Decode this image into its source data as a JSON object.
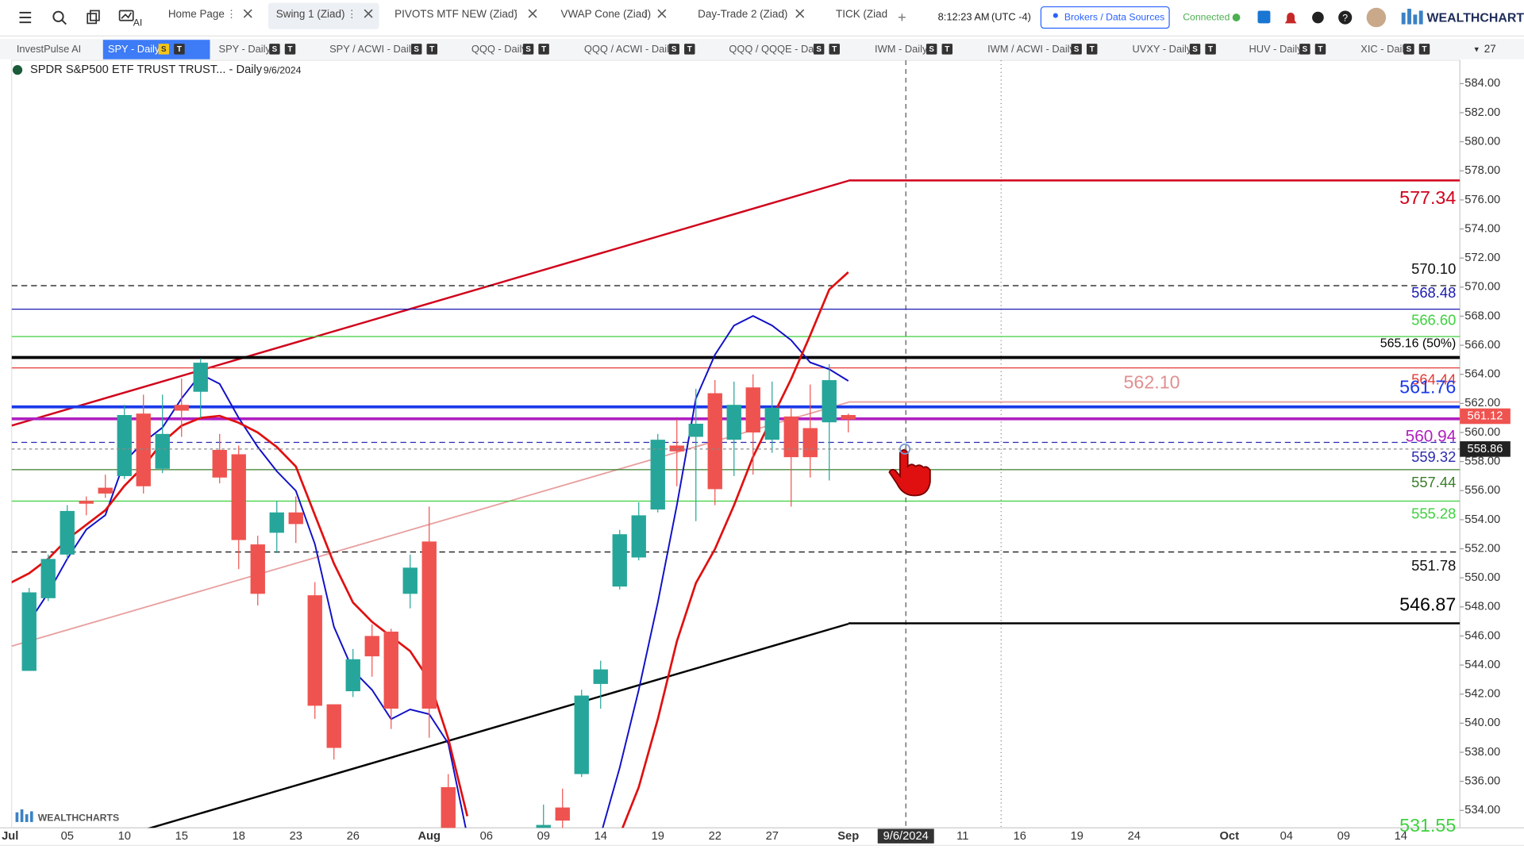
{
  "toolbar": {
    "tabs": [
      "Home Page",
      "Swing 1 (Ziad)",
      "PIVOTS MTF NEW (Ziad)",
      "VWAP Cone (Ziad)",
      "Day-Trade 2 (Ziad)",
      "TICK (Ziad"
    ],
    "ai": "AI",
    "time": "8:12:23 AM",
    "timezone": "(UTC -4)",
    "brokers": "Brokers / Data Sources",
    "status": "Connected",
    "brand": "WEALTHCHARTS"
  },
  "chart_tabs": {
    "tabs": [
      "InvestPulse AI",
      "SPY - Daily",
      "SPY - Daily",
      "SPY / ACWI - Daily",
      "QQQ - Daily",
      "QQQ / ACWI - Daily",
      "QQQ / QQQE - Daily",
      "IWM - Daily",
      "IWM / ACWI - Daily",
      "UVXY - Daily",
      "HUV - Daily",
      "XIC - Daily"
    ],
    "badges": [
      "S",
      "T"
    ],
    "count": "27"
  },
  "chart_data": {
    "type": "candlestick",
    "title": "SPDR S&P500 ETF TRUST TRUST... - Daily",
    "date": "9/6/2024",
    "categories": [
      "Jul",
      null,
      null,
      "05",
      null,
      null,
      "10",
      null,
      null,
      "15",
      null,
      null,
      "18",
      null,
      null,
      "23",
      null,
      null,
      "26",
      null,
      null,
      null,
      "Aug",
      null,
      null,
      "06",
      null,
      null,
      "09",
      null,
      null,
      "14",
      null,
      null,
      "19",
      null,
      null,
      "22",
      null,
      null,
      "27",
      null,
      null,
      null,
      "Sep",
      null,
      null,
      null,
      null,
      null,
      "11",
      null,
      null,
      "16",
      null,
      null,
      "19",
      null,
      null,
      "24",
      null,
      null,
      null,
      null,
      "Oct",
      null,
      null,
      "04",
      null,
      null,
      "09",
      null,
      null,
      "14",
      null,
      null,
      null
    ],
    "open": [
      null,
      543.6,
      548.6,
      551.6,
      555.3,
      556.2,
      557.0,
      561.3,
      557.5,
      561.9,
      562.8,
      558.8,
      558.5,
      552.3,
      553.1,
      554.5,
      548.8,
      541.3,
      542.2,
      546.0,
      546.3,
      548.9,
      552.5,
      535.6,
      null,
      null,
      null,
      null,
      531.8,
      534.2,
      536.5,
      542.7,
      549.4,
      551.4,
      554.7,
      559.1,
      559.7,
      562.7,
      559.5,
      563.1,
      559.5,
      561.1,
      560.3,
      560.7,
      561.2,
      null,
      null,
      null,
      null,
      null,
      null,
      null,
      null,
      null,
      null,
      null,
      null,
      null,
      null,
      null,
      null,
      null,
      null,
      null,
      null,
      null,
      null,
      null,
      null,
      null,
      null,
      null,
      null,
      null,
      null,
      null,
      null
    ],
    "high": [
      null,
      549.3,
      551.6,
      555.0,
      555.6,
      557.1,
      561.9,
      562.6,
      562.6,
      563.7,
      565.1,
      559.9,
      559.1,
      552.9,
      555.3,
      555.6,
      549.7,
      541.3,
      545.1,
      546.8,
      546.5,
      551.6,
      554.9,
      536.5,
      null,
      null,
      null,
      null,
      534.4,
      535.5,
      542.3,
      544.3,
      553.3,
      555.2,
      559.9,
      560.9,
      563.0,
      563.6,
      563.5,
      564.0,
      563.5,
      561.7,
      563.3,
      564.7,
      561.3,
      null,
      null,
      null,
      null,
      null,
      null,
      null,
      null,
      null,
      null,
      null,
      null,
      null,
      null,
      null,
      null,
      null,
      null,
      null,
      null,
      null,
      null,
      null,
      null,
      null,
      null,
      null,
      null,
      null,
      null,
      null,
      null
    ],
    "low": [
      null,
      543.6,
      548.4,
      551.3,
      554.3,
      555.5,
      556.8,
      555.8,
      557.2,
      559.7,
      561.0,
      556.5,
      550.6,
      548.1,
      551.7,
      552.4,
      540.3,
      537.5,
      541.8,
      543.2,
      539.6,
      547.9,
      539.0,
      531.5,
      null,
      null,
      null,
      null,
      531.0,
      532.5,
      536.3,
      541.0,
      549.2,
      551.2,
      554.5,
      556.3,
      553.9,
      555.0,
      557.0,
      557.1,
      558.6,
      554.9,
      556.9,
      556.7,
      560.0,
      null,
      null,
      null,
      null,
      null,
      null,
      null,
      null,
      null,
      null,
      null,
      null,
      null,
      null,
      null,
      null,
      null,
      null,
      null,
      null,
      null,
      null,
      null,
      null,
      null,
      null,
      null,
      null,
      null,
      null,
      null,
      null
    ],
    "close": [
      null,
      549.0,
      551.3,
      554.6,
      555.1,
      555.8,
      561.2,
      556.3,
      559.9,
      561.5,
      564.8,
      556.9,
      552.6,
      548.9,
      554.5,
      553.7,
      541.2,
      538.3,
      544.4,
      544.6,
      541.0,
      550.7,
      541.0,
      532.3,
      null,
      null,
      null,
      null,
      533.0,
      533.3,
      541.9,
      543.7,
      553.0,
      554.3,
      559.5,
      558.7,
      560.6,
      556.1,
      561.9,
      560.0,
      561.7,
      558.3,
      558.3,
      563.6,
      560.9,
      null,
      null,
      null,
      null,
      null,
      null,
      null,
      null,
      null,
      null,
      null,
      null,
      null,
      null,
      null,
      null,
      null,
      null,
      null,
      null,
      null,
      null,
      null,
      null,
      null,
      null,
      null,
      null,
      null,
      null,
      null,
      null
    ],
    "up_color": "#26a69a",
    "down_color": "#ef5350",
    "series": [
      {
        "color": "#1010c8",
        "values": [
          null,
          546.97,
          548.97,
          551.31,
          553.32,
          554.32,
          558.0,
          559.33,
          560.34,
          562.34,
          564.01,
          563.34,
          561.0,
          559.0,
          557.33,
          555.99,
          552.32,
          546.63,
          543.63,
          542.29,
          540.28,
          540.95,
          540.62,
          538.61,
          532.26,
          null,
          null,
          null,
          null,
          null,
          null,
          532.3,
          536.94,
          542.29,
          548.3,
          554.99,
          562.34,
          565.35,
          567.36,
          568.02,
          567.36,
          566.35,
          564.82,
          564.35,
          563.55,
          null,
          null,
          null,
          null,
          null,
          null,
          null,
          null,
          null,
          null,
          null,
          null,
          null,
          null,
          null,
          null,
          null,
          null,
          null,
          null,
          null,
          null,
          null,
          null,
          null,
          null,
          null,
          null,
          null,
          null,
          null,
          null
        ]
      },
      {
        "color": "#e01010",
        "values": [
          549.64,
          550.31,
          551.31,
          552.65,
          553.65,
          554.65,
          556.33,
          557.66,
          559.33,
          560.47,
          561.0,
          561.14,
          560.67,
          560.0,
          559.0,
          557.66,
          554.32,
          550.98,
          548.3,
          546.97,
          545.96,
          544.96,
          542.96,
          538.95,
          533.6,
          null,
          null,
          null,
          null,
          null,
          null,
          null,
          532.3,
          535.6,
          540.28,
          545.63,
          549.64,
          551.98,
          554.99,
          558.33,
          561.0,
          563.68,
          566.69,
          569.83,
          571.03,
          null,
          null,
          null,
          null,
          null,
          null,
          null,
          null,
          null,
          null,
          null,
          null,
          null,
          null,
          null,
          null,
          null,
          null,
          null,
          null,
          null,
          null,
          null,
          null,
          null,
          null,
          null,
          null,
          null,
          null,
          null,
          null
        ]
      }
    ],
    "ylim": [
      532.8,
      585.34
    ],
    "yticks": [
      {
        "value": 534,
        "label": "534.00"
      },
      {
        "value": 536,
        "label": "536.00"
      },
      {
        "value": 538,
        "label": "538.00"
      },
      {
        "value": 540,
        "label": "540.00"
      },
      {
        "value": 542,
        "label": "542.00"
      },
      {
        "value": 544,
        "label": "544.00"
      },
      {
        "value": 546,
        "label": "546.00"
      },
      {
        "value": 548,
        "label": "548.00"
      },
      {
        "value": 550,
        "label": "550.00"
      },
      {
        "value": 552,
        "label": "552.00"
      },
      {
        "value": 554,
        "label": "554.00"
      },
      {
        "value": 556,
        "label": "556.00"
      },
      {
        "value": 558,
        "label": "558.00"
      },
      {
        "value": 560,
        "label": "560.00"
      },
      {
        "value": 562,
        "label": "562.00"
      },
      {
        "value": 564,
        "label": "564.00"
      },
      {
        "value": 566,
        "label": "566.00"
      },
      {
        "value": 568,
        "label": "568.00"
      },
      {
        "value": 570,
        "label": "570.00"
      },
      {
        "value": 572,
        "label": "572.00"
      },
      {
        "value": 574,
        "label": "574.00"
      },
      {
        "value": 576,
        "label": "576.00"
      },
      {
        "value": 578,
        "label": "578.00"
      },
      {
        "value": 580,
        "label": "580.00"
      },
      {
        "value": 582,
        "label": "582.00"
      },
      {
        "value": 584,
        "label": "584.00"
      }
    ],
    "levels": [
      {
        "value": 577.34,
        "color": "#d0021b",
        "style": "solid"
      },
      {
        "value": 570.1,
        "label": "570.10",
        "color": "#111111",
        "style": "dashed"
      },
      {
        "value": 568.48,
        "color": "#1a1ab0",
        "style": "solid"
      },
      {
        "value": 566.6,
        "label": "566.60",
        "color": "#3ed13e",
        "style": "solid"
      },
      {
        "value": 565.16,
        "label": "565.16 (50%)",
        "color": "#000000",
        "style": "solid"
      },
      {
        "value": 564.44,
        "color": "#e53935",
        "style": "solid"
      },
      {
        "value": 562.1,
        "label": "562.10",
        "color": "#e8a0a0",
        "style": "solid"
      },
      {
        "value": 561.76,
        "color": "#1a3ae8",
        "style": "solid"
      },
      {
        "value": 560.94,
        "color": "#b020c0",
        "style": "solid"
      },
      {
        "value": 559.32,
        "color": "#2a2ab0",
        "style": "dashed"
      },
      {
        "value": 557.44,
        "color": "#3a7d2a",
        "style": "solid"
      },
      {
        "value": 555.28,
        "color": "#3ed13e",
        "style": "solid"
      },
      {
        "value": 551.78,
        "color": "#111111",
        "style": "dashed"
      },
      {
        "value": 546.87,
        "color": "#000000",
        "style": "solid"
      },
      {
        "value": 531.55,
        "color": "#3ed13e",
        "style": "solid"
      }
    ],
    "last_price": 561.12,
    "crosshair": {
      "date": "9/6/2024",
      "price": 558.86
    }
  }
}
